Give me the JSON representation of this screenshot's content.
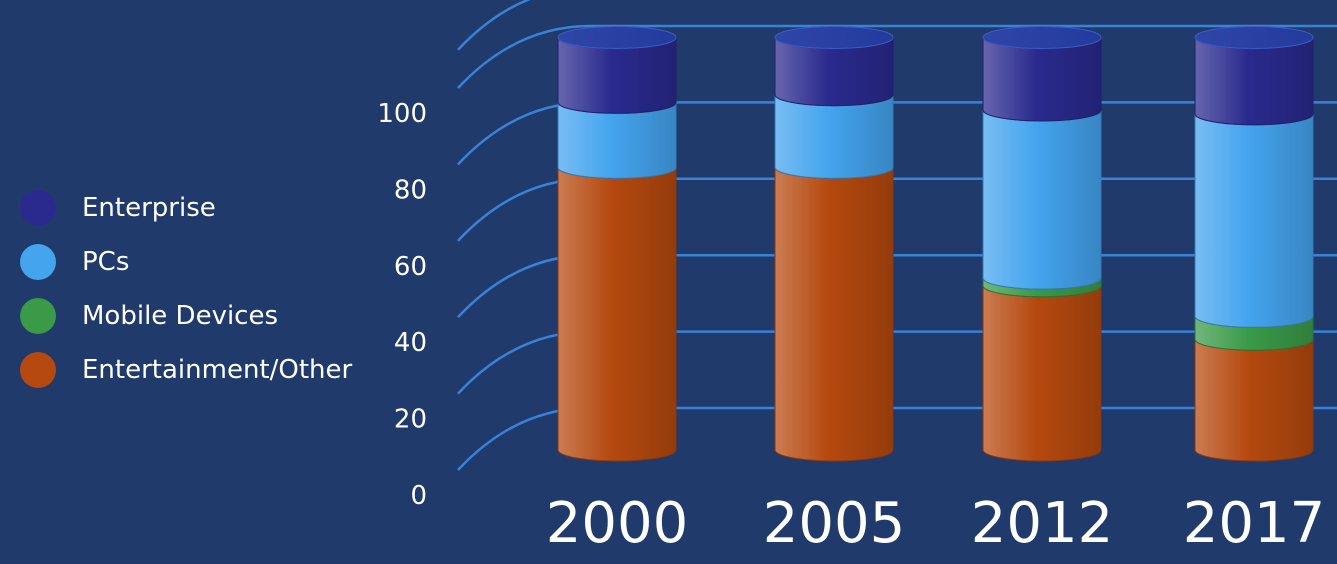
{
  "chart_data": {
    "type": "bar",
    "stacked": true,
    "categories": [
      "2000",
      "2005",
      "2012",
      "2017"
    ],
    "series": [
      {
        "name": "Entertainment/Other",
        "color": "#b5490f",
        "values": [
          74,
          74,
          43,
          29
        ]
      },
      {
        "name": "Mobile Devices",
        "color": "#3a9a48",
        "values": [
          0,
          0,
          2,
          6
        ]
      },
      {
        "name": "PCs",
        "color": "#44a4ee",
        "values": [
          17,
          19,
          44,
          53
        ]
      },
      {
        "name": "Enterprise",
        "color": "#2a2a8e",
        "values": [
          17,
          15,
          19,
          20
        ]
      }
    ],
    "legend_order": [
      "Enterprise",
      "PCs",
      "Mobile Devices",
      "Entertainment/Other"
    ],
    "y_ticks": [
      0,
      20,
      40,
      60,
      80,
      100
    ],
    "ylim": [
      0,
      110
    ],
    "grid": true,
    "legend_placement": "left",
    "title": "",
    "xlabel": "",
    "ylabel": ""
  }
}
